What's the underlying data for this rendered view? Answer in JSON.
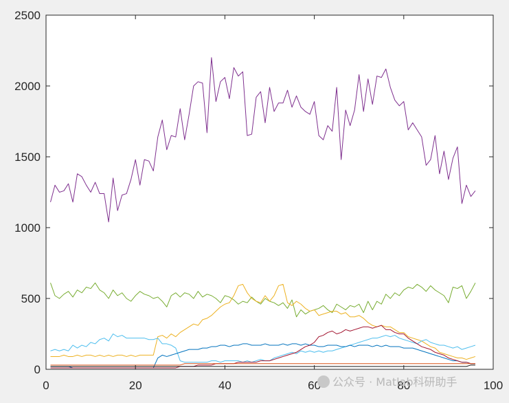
{
  "chart_data": {
    "type": "line",
    "title": "",
    "xlabel": "",
    "ylabel": "",
    "xlim": [
      0,
      100
    ],
    "ylim": [
      0,
      2500
    ],
    "xticks": [
      0,
      20,
      40,
      60,
      80,
      100
    ],
    "yticks": [
      0,
      500,
      1000,
      1500,
      2000,
      2500
    ],
    "grid": false,
    "legend": "none",
    "x": [
      1,
      2,
      3,
      4,
      5,
      6,
      7,
      8,
      9,
      10,
      11,
      12,
      13,
      14,
      15,
      16,
      17,
      18,
      19,
      20,
      21,
      22,
      23,
      24,
      25,
      26,
      27,
      28,
      29,
      30,
      31,
      32,
      33,
      34,
      35,
      36,
      37,
      38,
      39,
      40,
      41,
      42,
      43,
      44,
      45,
      46,
      47,
      48,
      49,
      50,
      51,
      52,
      53,
      54,
      55,
      56,
      57,
      58,
      59,
      60,
      61,
      62,
      63,
      64,
      65,
      66,
      67,
      68,
      69,
      70,
      71,
      72,
      73,
      74,
      75,
      76,
      77,
      78,
      79,
      80,
      81,
      82,
      83,
      84,
      85,
      86,
      87,
      88,
      89,
      90,
      91,
      92,
      93,
      94,
      95,
      96
    ],
    "series": [
      {
        "color": "#7e2f8e",
        "values": [
          1180,
          1300,
          1250,
          1260,
          1310,
          1180,
          1380,
          1360,
          1300,
          1250,
          1320,
          1240,
          1240,
          1040,
          1350,
          1120,
          1230,
          1240,
          1340,
          1480,
          1300,
          1480,
          1470,
          1400,
          1640,
          1760,
          1550,
          1650,
          1640,
          1840,
          1620,
          1800,
          2000,
          2030,
          2020,
          1670,
          2200,
          1890,
          2030,
          2060,
          1910,
          2130,
          2070,
          2100,
          1650,
          1660,
          1920,
          1960,
          1740,
          1990,
          1820,
          1880,
          1880,
          1970,
          1850,
          1930,
          1850,
          1820,
          1800,
          1890,
          1650,
          1620,
          1720,
          1680,
          1990,
          1480,
          1830,
          1720,
          1830,
          2080,
          1820,
          2050,
          1870,
          2070,
          2060,
          2120,
          1990,
          1900,
          1860,
          1890,
          1690,
          1740,
          1690,
          1640,
          1440,
          1480,
          1650,
          1380,
          1540,
          1340,
          1490,
          1570,
          1170,
          1300,
          1220,
          1260
        ]
      },
      {
        "color": "#77ac30",
        "values": [
          610,
          520,
          500,
          530,
          550,
          510,
          560,
          540,
          580,
          570,
          610,
          560,
          540,
          500,
          560,
          520,
          540,
          500,
          480,
          520,
          550,
          530,
          520,
          500,
          510,
          480,
          440,
          520,
          540,
          510,
          540,
          530,
          500,
          550,
          510,
          530,
          520,
          500,
          470,
          520,
          510,
          490,
          460,
          480,
          470,
          510,
          480,
          460,
          500,
          480,
          470,
          450,
          470,
          430,
          490,
          370,
          420,
          390,
          410,
          420,
          430,
          450,
          420,
          400,
          460,
          440,
          420,
          450,
          440,
          460,
          400,
          480,
          420,
          480,
          460,
          530,
          500,
          540,
          520,
          560,
          580,
          570,
          600,
          580,
          550,
          590,
          560,
          540,
          520,
          470,
          580,
          570,
          590,
          500,
          550,
          610
        ]
      },
      {
        "color": "#edb120",
        "values": [
          90,
          90,
          90,
          100,
          90,
          90,
          100,
          90,
          100,
          100,
          90,
          100,
          90,
          100,
          90,
          100,
          100,
          90,
          100,
          90,
          100,
          100,
          100,
          100,
          230,
          240,
          220,
          250,
          230,
          260,
          280,
          300,
          320,
          310,
          350,
          360,
          380,
          410,
          440,
          460,
          470,
          520,
          590,
          600,
          540,
          500,
          480,
          470,
          520,
          480,
          520,
          590,
          600,
          470,
          450,
          480,
          460,
          430,
          410,
          420,
          380,
          390,
          400,
          410,
          410,
          390,
          400,
          370,
          370,
          380,
          360,
          330,
          310,
          300,
          310,
          300,
          300,
          280,
          260,
          260,
          230,
          220,
          210,
          200,
          180,
          160,
          150,
          120,
          110,
          100,
          90,
          80,
          80,
          70,
          80,
          90
        ]
      },
      {
        "color": "#4dbeee",
        "values": [
          130,
          140,
          130,
          140,
          130,
          170,
          150,
          170,
          160,
          190,
          180,
          210,
          220,
          200,
          250,
          230,
          240,
          220,
          220,
          220,
          220,
          220,
          210,
          210,
          220,
          180,
          180,
          170,
          150,
          60,
          50,
          50,
          50,
          50,
          50,
          50,
          60,
          60,
          50,
          60,
          60,
          60,
          60,
          50,
          60,
          50,
          60,
          70,
          60,
          60,
          80,
          90,
          100,
          110,
          120,
          110,
          130,
          120,
          130,
          120,
          130,
          120,
          130,
          130,
          140,
          150,
          160,
          170,
          180,
          190,
          200,
          210,
          220,
          220,
          230,
          240,
          230,
          240,
          220,
          210,
          200,
          190,
          180,
          200,
          210,
          190,
          180,
          170,
          170,
          160,
          150,
          160,
          140,
          150,
          160,
          170
        ]
      },
      {
        "color": "#0072bd",
        "values": [
          20,
          20,
          20,
          20,
          20,
          10,
          10,
          10,
          10,
          10,
          10,
          10,
          10,
          10,
          10,
          10,
          10,
          10,
          10,
          10,
          10,
          10,
          10,
          10,
          80,
          100,
          90,
          100,
          110,
          120,
          130,
          140,
          140,
          140,
          150,
          150,
          160,
          160,
          170,
          170,
          160,
          170,
          170,
          180,
          180,
          170,
          170,
          170,
          180,
          170,
          170,
          170,
          180,
          170,
          180,
          180,
          170,
          180,
          170,
          170,
          160,
          160,
          170,
          170,
          170,
          160,
          160,
          170,
          160,
          170,
          170,
          170,
          160,
          170,
          160,
          170,
          160,
          160,
          160,
          150,
          150,
          150,
          140,
          130,
          120,
          110,
          100,
          90,
          80,
          70,
          60,
          60,
          50,
          50,
          40,
          40
        ]
      },
      {
        "color": "#a2142f",
        "values": [
          10,
          10,
          10,
          10,
          10,
          10,
          10,
          10,
          10,
          10,
          10,
          10,
          10,
          10,
          10,
          10,
          10,
          10,
          10,
          10,
          10,
          10,
          10,
          10,
          10,
          10,
          10,
          10,
          10,
          20,
          20,
          20,
          20,
          30,
          30,
          30,
          30,
          40,
          40,
          40,
          40,
          40,
          50,
          50,
          50,
          50,
          50,
          60,
          60,
          60,
          70,
          80,
          90,
          100,
          110,
          120,
          140,
          160,
          170,
          190,
          230,
          240,
          260,
          270,
          250,
          260,
          280,
          270,
          280,
          290,
          300,
          300,
          290,
          300,
          310,
          280,
          280,
          260,
          250,
          250,
          220,
          200,
          180,
          160,
          150,
          140,
          120,
          110,
          100,
          80,
          70,
          60,
          50,
          50,
          40,
          40
        ]
      },
      {
        "color": "#d95319",
        "values": [
          30,
          30,
          30,
          30,
          30,
          30,
          30,
          30,
          30,
          30,
          30,
          30,
          30,
          30,
          30,
          30,
          30,
          30,
          30,
          30,
          30,
          30,
          30,
          30,
          30,
          30,
          30,
          30,
          30,
          30,
          40,
          40,
          40,
          40,
          40,
          40,
          40,
          40,
          40,
          40,
          40,
          40,
          40,
          40,
          40,
          40,
          40,
          40,
          40,
          40,
          40,
          40,
          40,
          40,
          40,
          40,
          40,
          40,
          40,
          40,
          40,
          40,
          40,
          40,
          40,
          40,
          40,
          40,
          40,
          40,
          40,
          40,
          40,
          40,
          40,
          40,
          40,
          40,
          40,
          40,
          40,
          40,
          40,
          40,
          40,
          40,
          40,
          40,
          40,
          40,
          40,
          40,
          40,
          40,
          40,
          40
        ]
      },
      {
        "color": "#1a1a1a",
        "values": [
          20,
          20,
          20,
          20,
          20,
          20,
          20,
          20,
          20,
          20,
          20,
          20,
          20,
          20,
          20,
          20,
          20,
          20,
          20,
          20,
          20,
          20,
          20,
          20,
          20,
          20,
          20,
          20,
          20,
          20,
          20,
          20,
          20,
          20,
          20,
          20,
          20,
          20,
          20,
          20,
          20,
          20,
          20,
          20,
          20,
          20,
          20,
          20,
          20,
          20,
          20,
          20,
          20,
          20,
          20,
          20,
          20,
          20,
          20,
          20,
          20,
          20,
          20,
          20,
          20,
          20,
          20,
          20,
          20,
          20,
          20,
          20,
          20,
          20,
          20,
          20,
          20,
          20,
          20,
          20,
          20,
          20,
          20,
          20,
          20,
          20,
          20,
          20,
          20,
          20,
          20,
          20,
          20,
          20,
          30,
          30
        ]
      }
    ]
  },
  "watermark": "公众号 · Matlab科研助手",
  "colors": {
    "figure_bg": "#f0f0f0",
    "axes_bg": "#ffffff",
    "axis": "#262626"
  }
}
